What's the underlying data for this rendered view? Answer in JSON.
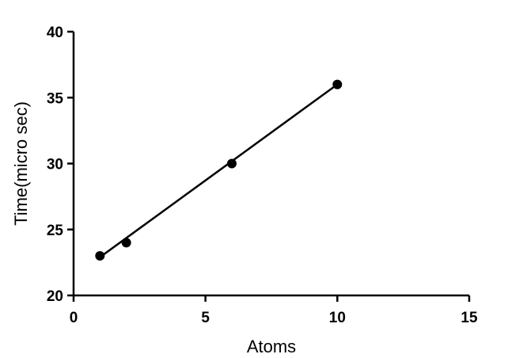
{
  "chart_data": {
    "type": "scatter",
    "title": "",
    "xlabel": "Atoms",
    "ylabel": "Time(micro sec)",
    "xlim": [
      0,
      15
    ],
    "ylim": [
      20,
      40
    ],
    "x_ticks": [
      0,
      5,
      10,
      15
    ],
    "y_ticks": [
      20,
      25,
      30,
      35,
      40
    ],
    "x_tick_labels": [
      "0",
      "5",
      "10",
      "15"
    ],
    "y_tick_labels": [
      "20",
      "25",
      "30",
      "35",
      "40"
    ],
    "grid": false,
    "legend": "none",
    "series": [
      {
        "x": [
          1,
          2,
          6,
          10
        ],
        "y": [
          23,
          24,
          30,
          36
        ],
        "marker": "circle",
        "color": "#000000",
        "fit_line": {
          "x": [
            1,
            10
          ],
          "y": [
            22.9,
            36
          ]
        }
      }
    ]
  }
}
